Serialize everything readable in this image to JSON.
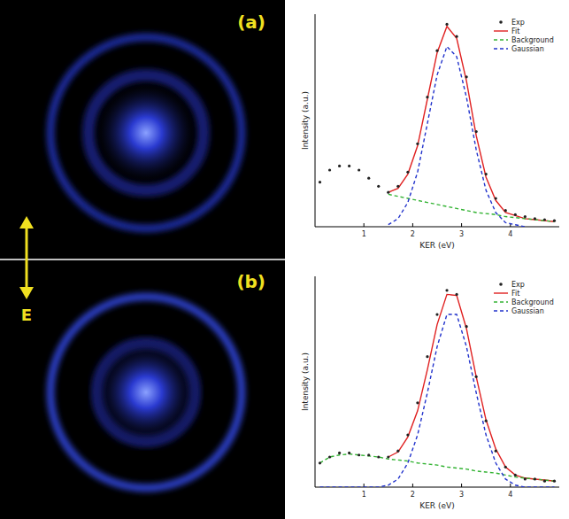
{
  "images": [
    {
      "label": "(a)"
    },
    {
      "label": "(b)"
    }
  ],
  "field": "E",
  "chart_data": [
    {
      "type": "line",
      "x_label": "KER (eV)",
      "y_label": "Intensity (a.u.)",
      "xlim": [
        0,
        5
      ],
      "xticks": [
        1,
        2,
        3,
        4
      ],
      "ylim": [
        0,
        1.05
      ],
      "tick_labels": "x",
      "legend": "top-right",
      "series": [
        {
          "name": "Exp",
          "color": "#222222",
          "marker": "circle",
          "x": [
            0.1,
            0.3,
            0.5,
            0.7,
            0.9,
            1.1,
            1.3,
            1.5,
            1.7,
            1.9,
            2.1,
            2.3,
            2.5,
            2.7,
            2.9,
            3.1,
            3.3,
            3.5,
            3.7,
            3.9,
            4.1,
            4.3,
            4.5,
            4.7,
            4.9
          ],
          "values": [
            0.22,
            0.28,
            0.3,
            0.3,
            0.28,
            0.24,
            0.2,
            0.17,
            0.2,
            0.27,
            0.41,
            0.64,
            0.87,
            1.0,
            0.94,
            0.74,
            0.47,
            0.26,
            0.14,
            0.08,
            0.06,
            0.05,
            0.04,
            0.035,
            0.03
          ]
        },
        {
          "name": "Fit",
          "color": "#e02020",
          "line_style": "solid",
          "x": [
            1.5,
            1.7,
            1.9,
            2.1,
            2.3,
            2.5,
            2.7,
            2.9,
            3.1,
            3.3,
            3.5,
            3.7,
            3.9,
            4.1,
            4.3,
            4.5,
            4.7,
            4.9
          ],
          "values": [
            0.17,
            0.19,
            0.26,
            0.4,
            0.63,
            0.86,
            0.99,
            0.93,
            0.72,
            0.45,
            0.245,
            0.13,
            0.07,
            0.055,
            0.04,
            0.035,
            0.03,
            0.025
          ]
        },
        {
          "name": "Background",
          "color": "#33b333",
          "line_style": "dashed",
          "x": [
            1.5,
            1.7,
            1.9,
            2.1,
            2.3,
            2.5,
            2.7,
            2.9,
            3.1,
            3.3,
            3.5,
            3.7,
            3.9,
            4.1,
            4.3,
            4.5,
            4.7,
            4.9
          ],
          "values": [
            0.16,
            0.15,
            0.14,
            0.13,
            0.12,
            0.11,
            0.1,
            0.09,
            0.08,
            0.07,
            0.065,
            0.06,
            0.05,
            0.045,
            0.04,
            0.035,
            0.03,
            0.025
          ]
        },
        {
          "name": "Gaussian",
          "color": "#2233cc",
          "line_style": "dashed",
          "x": [
            1.5,
            1.7,
            1.9,
            2.1,
            2.3,
            2.5,
            2.7,
            2.9,
            3.1,
            3.3,
            3.5,
            3.7,
            3.9,
            4.1,
            4.3
          ],
          "values": [
            0.01,
            0.04,
            0.12,
            0.27,
            0.51,
            0.75,
            0.89,
            0.84,
            0.64,
            0.38,
            0.18,
            0.07,
            0.02,
            0.01,
            0
          ]
        }
      ]
    },
    {
      "type": "line",
      "x_label": "KER (eV)",
      "y_label": "Intensity (a.u.)",
      "xlim": [
        0,
        5
      ],
      "xticks": [
        1,
        2,
        3,
        4
      ],
      "ylim": [
        0,
        1.05
      ],
      "tick_labels": "x",
      "legend": "top-right",
      "series": [
        {
          "name": "Exp",
          "color": "#222222",
          "marker": "circle",
          "x": [
            0.1,
            0.3,
            0.5,
            0.7,
            0.9,
            1.1,
            1.3,
            1.5,
            1.7,
            1.9,
            2.1,
            2.3,
            2.5,
            2.7,
            2.9,
            3.1,
            3.3,
            3.5,
            3.7,
            3.9,
            4.1,
            4.3,
            4.5,
            4.7,
            4.9
          ],
          "values": [
            0.12,
            0.15,
            0.17,
            0.17,
            0.16,
            0.16,
            0.15,
            0.15,
            0.18,
            0.26,
            0.42,
            0.65,
            0.86,
            0.98,
            0.96,
            0.8,
            0.55,
            0.33,
            0.18,
            0.1,
            0.06,
            0.04,
            0.04,
            0.03,
            0.03
          ]
        },
        {
          "name": "Fit",
          "color": "#e02020",
          "line_style": "solid",
          "x": [
            1.5,
            1.7,
            1.9,
            2.1,
            2.3,
            2.5,
            2.7,
            2.9,
            3.1,
            3.3,
            3.5,
            3.7,
            3.9,
            4.1,
            4.3,
            4.5,
            4.7,
            4.9
          ],
          "values": [
            0.15,
            0.175,
            0.25,
            0.38,
            0.585,
            0.81,
            0.96,
            0.955,
            0.79,
            0.55,
            0.335,
            0.19,
            0.1,
            0.06,
            0.045,
            0.04,
            0.035,
            0.03
          ]
        },
        {
          "name": "Background",
          "color": "#33b333",
          "line_style": "dashed",
          "x": [
            0.1,
            0.3,
            0.5,
            0.7,
            0.9,
            1.1,
            1.3,
            1.5,
            1.7,
            1.9,
            2.1,
            2.3,
            2.5,
            2.7,
            2.9,
            3.1,
            3.3,
            3.5,
            3.7,
            3.9,
            4.1,
            4.3,
            4.5,
            4.7,
            4.9
          ],
          "values": [
            0.12,
            0.15,
            0.16,
            0.165,
            0.16,
            0.155,
            0.15,
            0.14,
            0.135,
            0.13,
            0.12,
            0.115,
            0.11,
            0.1,
            0.095,
            0.09,
            0.08,
            0.075,
            0.07,
            0.06,
            0.05,
            0.045,
            0.04,
            0.035,
            0.03
          ]
        },
        {
          "name": "Gaussian",
          "color": "#2233cc",
          "line_style": "dashed",
          "x": [
            0.1,
            0.3,
            0.5,
            0.7,
            0.9,
            1.1,
            1.3,
            1.5,
            1.7,
            1.9,
            2.1,
            2.3,
            2.5,
            2.7,
            2.9,
            3.1,
            3.3,
            3.5,
            3.7,
            3.9,
            4.1,
            4.3,
            4.5,
            4.7,
            4.9
          ],
          "values": [
            0,
            0,
            0,
            0,
            0,
            0,
            0,
            0.01,
            0.04,
            0.12,
            0.26,
            0.47,
            0.7,
            0.86,
            0.86,
            0.7,
            0.47,
            0.26,
            0.12,
            0.04,
            0.01,
            0,
            0,
            0,
            0
          ]
        }
      ]
    }
  ]
}
